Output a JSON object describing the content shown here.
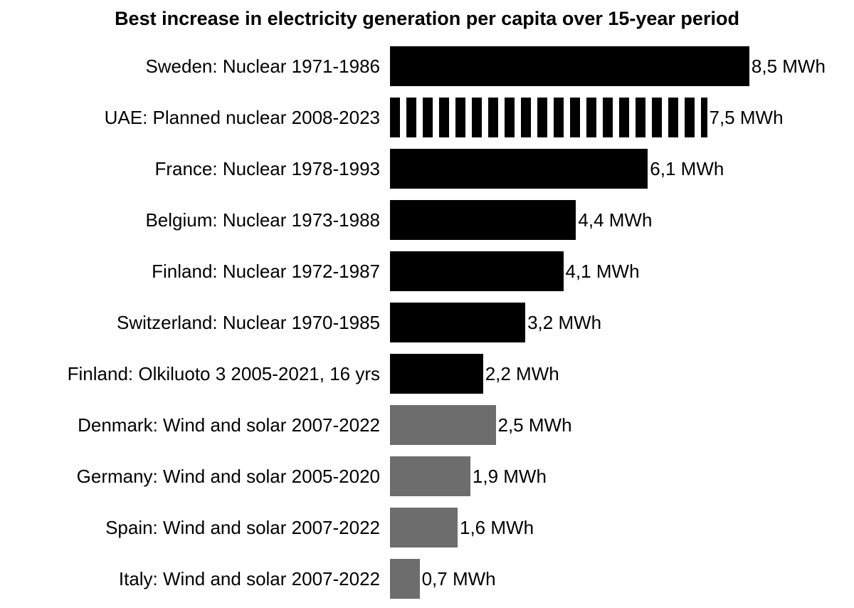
{
  "chart_data": {
    "type": "bar",
    "orientation": "horizontal",
    "title": "Best increase in electricity generation per capita over 15-year period",
    "unit": "MWh",
    "xlim": [
      0,
      8.5
    ],
    "axes_visible": false,
    "legend": "none",
    "colors": {
      "nuclear": "#000000",
      "wind_and_solar": "#6d6d6d"
    },
    "categories": [
      "Sweden: Nuclear 1971-1986",
      "UAE: Planned nuclear 2008-2023",
      "France: Nuclear 1978-1993",
      "Belgium: Nuclear 1973-1988",
      "Finland: Nuclear 1972-1987",
      "Switzerland: Nuclear 1970-1985",
      "Finland: Olkiluoto 3 2005-2021, 16 yrs",
      "Denmark: Wind and solar 2007-2022",
      "Germany: Wind and solar 2005-2020",
      "Spain: Wind and solar 2007-2022",
      "Italy: Wind and solar 2007-2022"
    ],
    "values": [
      8.5,
      7.5,
      6.1,
      4.4,
      4.1,
      3.2,
      2.2,
      2.5,
      1.9,
      1.6,
      0.7
    ],
    "value_labels": [
      "8,5 MWh",
      "7,5 MWh",
      "6,1 MWh",
      "4,4 MWh",
      "4,1 MWh",
      "3,2 MWh",
      "2,2 MWh",
      "2,5 MWh",
      "1,9 MWh",
      "1,6 MWh",
      "0,7 MWh"
    ],
    "bars": [
      {
        "label": "Sweden: Nuclear 1971-1986",
        "value": 8.5,
        "value_label": "8,5 MWh",
        "color": "#000000",
        "pattern": "solid"
      },
      {
        "label": "UAE: Planned nuclear 2008-2023",
        "value": 7.5,
        "value_label": "7,5 MWh",
        "color": "#000000",
        "pattern": "striped"
      },
      {
        "label": "France: Nuclear 1978-1993",
        "value": 6.1,
        "value_label": "6,1 MWh",
        "color": "#000000",
        "pattern": "solid"
      },
      {
        "label": "Belgium: Nuclear 1973-1988",
        "value": 4.4,
        "value_label": "4,4 MWh",
        "color": "#000000",
        "pattern": "solid"
      },
      {
        "label": "Finland: Nuclear 1972-1987",
        "value": 4.1,
        "value_label": "4,1 MWh",
        "color": "#000000",
        "pattern": "solid"
      },
      {
        "label": "Switzerland: Nuclear 1970-1985",
        "value": 3.2,
        "value_label": "3,2 MWh",
        "color": "#000000",
        "pattern": "solid"
      },
      {
        "label": "Finland: Olkiluoto 3 2005-2021, 16 yrs",
        "value": 2.2,
        "value_label": "2,2 MWh",
        "color": "#000000",
        "pattern": "solid"
      },
      {
        "label": "Denmark: Wind and solar 2007-2022",
        "value": 2.5,
        "value_label": "2,5 MWh",
        "color": "#6d6d6d",
        "pattern": "solid"
      },
      {
        "label": "Germany: Wind and solar 2005-2020",
        "value": 1.9,
        "value_label": "1,9 MWh",
        "color": "#6d6d6d",
        "pattern": "solid"
      },
      {
        "label": "Spain: Wind and solar 2007-2022",
        "value": 1.6,
        "value_label": "1,6 MWh",
        "color": "#6d6d6d",
        "pattern": "solid"
      },
      {
        "label": "Italy: Wind and solar 2007-2022",
        "value": 0.7,
        "value_label": "0,7 MWh",
        "color": "#6d6d6d",
        "pattern": "solid"
      }
    ]
  }
}
